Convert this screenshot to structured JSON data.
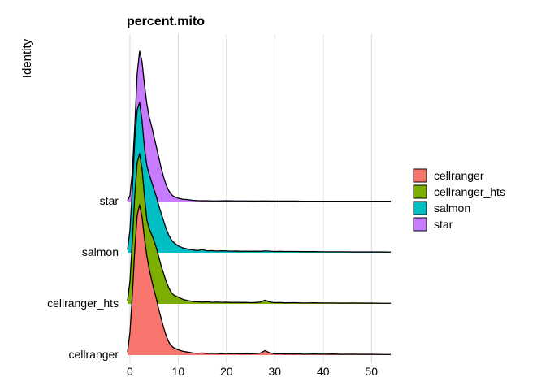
{
  "chart_data": {
    "type": "ridgeline",
    "title": "percent.mito",
    "xlabel": "",
    "ylabel": "Identity",
    "xlim": [
      -1,
      54
    ],
    "x_ticks": [
      0,
      10,
      20,
      30,
      40,
      50
    ],
    "grid": "vertical-major",
    "legend_position": "right",
    "series": [
      {
        "name": "cellranger",
        "color": "#F8766D",
        "density": [
          [
            -0.5,
            0.02
          ],
          [
            0,
            0.15
          ],
          [
            0.5,
            0.4
          ],
          [
            1,
            0.7
          ],
          [
            1.5,
            0.93
          ],
          [
            2,
            1.0
          ],
          [
            2.5,
            0.92
          ],
          [
            3,
            0.78
          ],
          [
            3.5,
            0.66
          ],
          [
            4,
            0.57
          ],
          [
            4.5,
            0.5
          ],
          [
            5,
            0.43
          ],
          [
            5.5,
            0.37
          ],
          [
            6,
            0.3
          ],
          [
            6.5,
            0.24
          ],
          [
            7,
            0.18
          ],
          [
            7.5,
            0.13
          ],
          [
            8,
            0.09
          ],
          [
            8.5,
            0.065
          ],
          [
            9,
            0.05
          ],
          [
            10,
            0.035
          ],
          [
            11,
            0.025
          ],
          [
            12,
            0.02
          ],
          [
            13,
            0.014
          ],
          [
            14,
            0.012
          ],
          [
            15,
            0.014
          ],
          [
            16,
            0.01
          ],
          [
            17,
            0.012
          ],
          [
            18,
            0.01
          ],
          [
            19,
            0.009
          ],
          [
            20,
            0.011
          ],
          [
            21,
            0.009
          ],
          [
            22,
            0.01
          ],
          [
            23,
            0.008
          ],
          [
            24,
            0.009
          ],
          [
            25,
            0.008
          ],
          [
            26,
            0.01
          ],
          [
            27,
            0.013
          ],
          [
            28,
            0.03
          ],
          [
            29,
            0.014
          ],
          [
            30,
            0.008
          ],
          [
            31,
            0.009
          ],
          [
            32,
            0.007
          ],
          [
            33,
            0.008
          ],
          [
            34,
            0.007
          ],
          [
            35,
            0.008
          ],
          [
            36,
            0.006
          ],
          [
            38,
            0.007
          ],
          [
            40,
            0.006
          ],
          [
            42,
            0.007
          ],
          [
            44,
            0.005
          ],
          [
            46,
            0.006
          ],
          [
            48,
            0.005
          ],
          [
            50,
            0.005
          ],
          [
            52,
            0.004
          ],
          [
            54,
            0.004
          ]
        ]
      },
      {
        "name": "cellranger_hts",
        "color": "#7CAE00",
        "density": [
          [
            -0.5,
            0.02
          ],
          [
            0,
            0.15
          ],
          [
            0.5,
            0.42
          ],
          [
            1,
            0.72
          ],
          [
            1.5,
            0.94
          ],
          [
            2,
            1.0
          ],
          [
            2.5,
            0.9
          ],
          [
            3,
            0.72
          ],
          [
            3.5,
            0.56
          ],
          [
            4,
            0.5
          ],
          [
            4.5,
            0.46
          ],
          [
            5,
            0.42
          ],
          [
            5.5,
            0.37
          ],
          [
            6,
            0.31
          ],
          [
            6.5,
            0.25
          ],
          [
            7,
            0.2
          ],
          [
            7.5,
            0.15
          ],
          [
            8,
            0.11
          ],
          [
            8.5,
            0.08
          ],
          [
            9,
            0.06
          ],
          [
            10,
            0.045
          ],
          [
            11,
            0.03
          ],
          [
            12,
            0.022
          ],
          [
            13,
            0.016
          ],
          [
            14,
            0.014
          ],
          [
            15,
            0.012
          ],
          [
            16,
            0.014
          ],
          [
            17,
            0.01
          ],
          [
            18,
            0.012
          ],
          [
            19,
            0.01
          ],
          [
            20,
            0.011
          ],
          [
            21,
            0.009
          ],
          [
            22,
            0.01
          ],
          [
            23,
            0.009
          ],
          [
            24,
            0.01
          ],
          [
            25,
            0.008
          ],
          [
            26,
            0.009
          ],
          [
            27,
            0.012
          ],
          [
            28,
            0.025
          ],
          [
            29,
            0.012
          ],
          [
            30,
            0.008
          ],
          [
            31,
            0.009
          ],
          [
            32,
            0.007
          ],
          [
            34,
            0.008
          ],
          [
            36,
            0.006
          ],
          [
            38,
            0.007
          ],
          [
            40,
            0.006
          ],
          [
            42,
            0.006
          ],
          [
            44,
            0.005
          ],
          [
            46,
            0.006
          ],
          [
            48,
            0.005
          ],
          [
            50,
            0.005
          ],
          [
            52,
            0.004
          ],
          [
            54,
            0.004
          ]
        ]
      },
      {
        "name": "salmon",
        "color": "#00BFC4",
        "density": [
          [
            -0.5,
            0.02
          ],
          [
            0,
            0.15
          ],
          [
            0.5,
            0.42
          ],
          [
            1,
            0.75
          ],
          [
            1.5,
            0.95
          ],
          [
            2,
            1.0
          ],
          [
            2.5,
            0.88
          ],
          [
            3,
            0.7
          ],
          [
            3.5,
            0.58
          ],
          [
            4,
            0.52
          ],
          [
            4.5,
            0.47
          ],
          [
            5,
            0.42
          ],
          [
            5.5,
            0.37
          ],
          [
            6,
            0.31
          ],
          [
            6.5,
            0.26
          ],
          [
            7,
            0.21
          ],
          [
            7.5,
            0.16
          ],
          [
            8,
            0.12
          ],
          [
            8.5,
            0.09
          ],
          [
            9,
            0.07
          ],
          [
            10,
            0.045
          ],
          [
            11,
            0.032
          ],
          [
            12,
            0.024
          ],
          [
            13,
            0.018
          ],
          [
            14,
            0.015
          ],
          [
            15,
            0.02
          ],
          [
            16,
            0.012
          ],
          [
            17,
            0.014
          ],
          [
            18,
            0.011
          ],
          [
            19,
            0.013
          ],
          [
            20,
            0.012
          ],
          [
            21,
            0.01
          ],
          [
            22,
            0.011
          ],
          [
            23,
            0.009
          ],
          [
            24,
            0.01
          ],
          [
            25,
            0.009
          ],
          [
            26,
            0.01
          ],
          [
            27,
            0.009
          ],
          [
            28,
            0.012
          ],
          [
            29,
            0.01
          ],
          [
            30,
            0.008
          ],
          [
            31,
            0.009
          ],
          [
            32,
            0.008
          ],
          [
            34,
            0.008
          ],
          [
            36,
            0.007
          ],
          [
            38,
            0.007
          ],
          [
            40,
            0.006
          ],
          [
            42,
            0.006
          ],
          [
            44,
            0.006
          ],
          [
            46,
            0.005
          ],
          [
            48,
            0.005
          ],
          [
            50,
            0.005
          ],
          [
            52,
            0.005
          ],
          [
            54,
            0.004
          ]
        ]
      },
      {
        "name": "star",
        "color": "#C77CFF",
        "density": [
          [
            -0.5,
            0.005
          ],
          [
            0,
            0.04
          ],
          [
            0.5,
            0.2
          ],
          [
            1,
            0.5
          ],
          [
            1.5,
            0.85
          ],
          [
            2,
            1.0
          ],
          [
            2.5,
            0.93
          ],
          [
            3,
            0.78
          ],
          [
            3.5,
            0.65
          ],
          [
            4,
            0.56
          ],
          [
            4.5,
            0.5
          ],
          [
            5,
            0.43
          ],
          [
            5.5,
            0.36
          ],
          [
            6,
            0.29
          ],
          [
            6.5,
            0.22
          ],
          [
            7,
            0.16
          ],
          [
            7.5,
            0.11
          ],
          [
            8,
            0.075
          ],
          [
            8.5,
            0.05
          ],
          [
            9,
            0.035
          ],
          [
            10,
            0.022
          ],
          [
            11,
            0.015
          ],
          [
            12,
            0.013
          ],
          [
            13,
            0.008
          ],
          [
            14,
            0.006
          ],
          [
            15,
            0.005
          ],
          [
            16,
            0.005
          ],
          [
            17,
            0.004
          ],
          [
            18,
            0.004
          ],
          [
            20,
            0.005
          ],
          [
            22,
            0.004
          ],
          [
            24,
            0.004
          ],
          [
            26,
            0.003
          ],
          [
            28,
            0.004
          ],
          [
            30,
            0.003
          ],
          [
            32,
            0.003
          ],
          [
            34,
            0.003
          ],
          [
            36,
            0.002
          ],
          [
            40,
            0.002
          ],
          [
            44,
            0.002
          ],
          [
            48,
            0.002
          ],
          [
            52,
            0.002
          ],
          [
            54,
            0.002
          ]
        ]
      }
    ]
  }
}
